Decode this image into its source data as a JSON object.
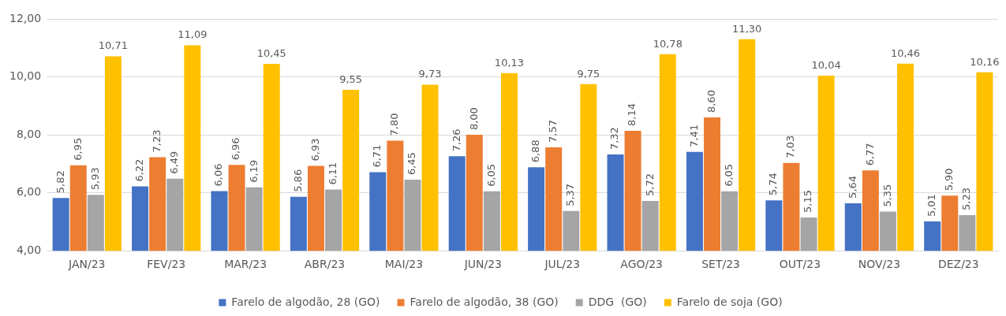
{
  "chart_data": {
    "type": "bar",
    "categories": [
      "JAN/23",
      "FEV/23",
      "MAR/23",
      "ABR/23",
      "MAI/23",
      "JUN/23",
      "JUL/23",
      "AGO/23",
      "SET/23",
      "OUT/23",
      "NOV/23",
      "DEZ/23"
    ],
    "series": [
      {
        "name": "Farelo de algodão, 28 (GO)",
        "color": "#4472c4",
        "values": [
          5.82,
          6.22,
          6.06,
          5.86,
          6.71,
          7.26,
          6.88,
          7.32,
          7.41,
          5.74,
          5.64,
          5.01
        ],
        "value_labels": [
          "5,82",
          "6,22",
          "6,06",
          "5,86",
          "6,71",
          "7,26",
          "6,88",
          "7,32",
          "7,41",
          "5,74",
          "5,64",
          "5,01"
        ]
      },
      {
        "name": "Farelo de algodão, 38 (GO)",
        "color": "#ed7d31",
        "values": [
          6.95,
          7.23,
          6.96,
          6.93,
          7.8,
          8.0,
          7.57,
          8.14,
          8.6,
          7.03,
          6.77,
          5.9
        ],
        "value_labels": [
          "6,95",
          "7,23",
          "6,96",
          "6,93",
          "7,80",
          "8,00",
          "7,57",
          "8,14",
          "8,60",
          "7,03",
          "6,77",
          "5,90"
        ]
      },
      {
        "name": "DDG  (GO)",
        "color": "#a5a5a5",
        "values": [
          5.93,
          6.49,
          6.19,
          6.11,
          6.45,
          6.05,
          5.37,
          5.72,
          6.05,
          5.15,
          5.35,
          5.23
        ],
        "value_labels": [
          "5,93",
          "6,49",
          "6,19",
          "6,11",
          "6,45",
          "6,05",
          "5,37",
          "5,72",
          "6,05",
          "5,15",
          "5,35",
          "5,23"
        ]
      },
      {
        "name": "Farelo de soja (GO)",
        "color": "#ffc000",
        "values": [
          10.71,
          11.09,
          10.45,
          9.55,
          9.73,
          10.13,
          9.75,
          10.78,
          11.3,
          10.04,
          10.46,
          10.16
        ],
        "value_labels": [
          "10,71",
          "11,09",
          "10,45",
          "9,55",
          "9,73",
          "10,13",
          "9,75",
          "10,78",
          "11,30",
          "10,04",
          "10,46",
          "10,16"
        ]
      }
    ],
    "ylim": [
      4,
      12
    ],
    "yticks": [
      {
        "value": 4,
        "label": "4,00"
      },
      {
        "value": 6,
        "label": "6,00"
      },
      {
        "value": 8,
        "label": "8,00"
      },
      {
        "value": 10,
        "label": "10,00"
      },
      {
        "value": 12,
        "label": "12,00"
      }
    ],
    "grid": "y",
    "legend": "bottom"
  }
}
